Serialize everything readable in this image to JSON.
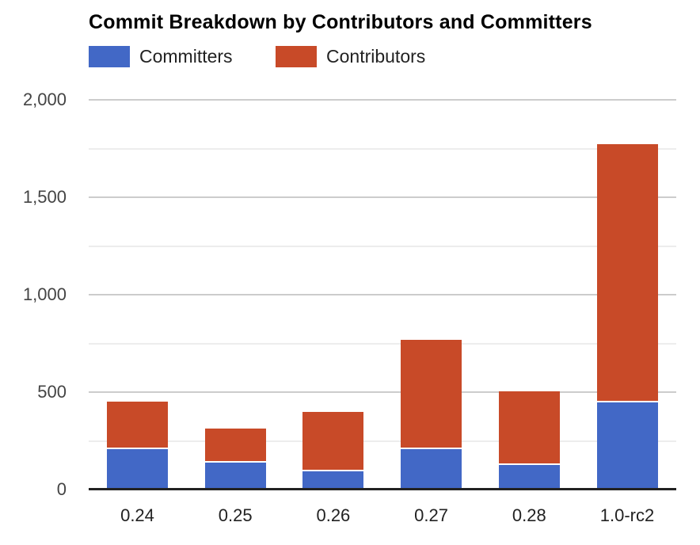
{
  "title": "Commit Breakdown by Contributors and Committers",
  "chart_data": {
    "type": "bar",
    "stacked": true,
    "title": "Commit Breakdown by Contributors and Committers",
    "categories": [
      "0.24",
      "0.25",
      "0.26",
      "0.27",
      "0.28",
      "1.0-rc2"
    ],
    "series": [
      {
        "name": "Committers",
        "color": "#4268c6",
        "values": [
          205,
          135,
          90,
          205,
          120,
          445
        ]
      },
      {
        "name": "Contributors",
        "color": "#c84a28",
        "values": [
          245,
          175,
          305,
          560,
          380,
          1325
        ]
      }
    ],
    "xlabel": "",
    "ylabel": "",
    "ylim": [
      0,
      2000
    ],
    "yticks": [
      {
        "value": 0,
        "label": "0"
      },
      {
        "value": 500,
        "label": "500"
      },
      {
        "value": 1000,
        "label": "1,000"
      },
      {
        "value": 1500,
        "label": "1,500"
      },
      {
        "value": 2000,
        "label": "2,000"
      }
    ],
    "minor_gridlines": [
      250,
      750,
      1250,
      1750
    ],
    "grid": true,
    "legend_position": "top",
    "background": "#ffffff",
    "axis_color": "#222222",
    "major_grid_color": "#cccccc",
    "minor_grid_color": "#ededed"
  }
}
